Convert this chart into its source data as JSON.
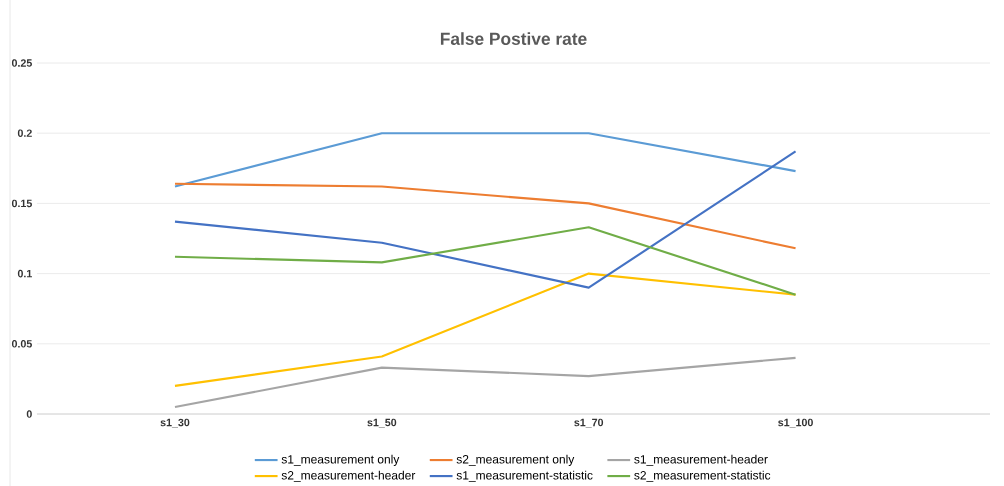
{
  "chart_data": {
    "type": "line",
    "title": "False Postive rate",
    "categories": [
      "s1_30",
      "s1_50",
      "s1_70",
      "s1_100"
    ],
    "series": [
      {
        "name": "s1_measurement only",
        "color": "#5b9bd5",
        "values": [
          0.162,
          0.2,
          0.2,
          0.173
        ]
      },
      {
        "name": "s2_measurement only",
        "color": "#ed7d31",
        "values": [
          0.164,
          0.162,
          0.15,
          0.118
        ]
      },
      {
        "name": "s1_measurement-header",
        "color": "#a5a5a5",
        "values": [
          0.005,
          0.033,
          0.027,
          0.04
        ]
      },
      {
        "name": "s2_measurement-header",
        "color": "#ffc000",
        "values": [
          0.02,
          0.041,
          0.1,
          0.085
        ]
      },
      {
        "name": "s1_measurement-statistic",
        "color": "#4472c4",
        "values": [
          0.137,
          0.122,
          0.09,
          0.187
        ]
      },
      {
        "name": "s2_measurement-statistic",
        "color": "#70ad47",
        "values": [
          0.112,
          0.108,
          0.133,
          0.085
        ]
      }
    ],
    "ylim": [
      0,
      0.25
    ],
    "yticks": [
      0,
      0.05,
      0.1,
      0.15,
      0.2,
      0.25
    ],
    "grid": "y",
    "legend": "bottom",
    "marker": "none",
    "line_style": "solid"
  }
}
